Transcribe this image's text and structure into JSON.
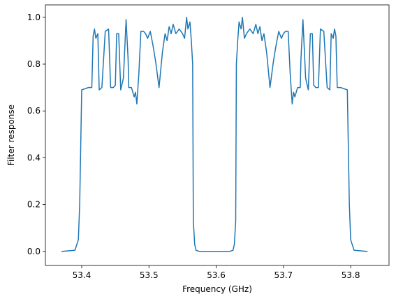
{
  "chart_data": {
    "type": "line",
    "xlabel": "Frequency (GHz)",
    "ylabel": "Filter response",
    "color": "#1f77b4",
    "x": [
      53.37,
      53.39,
      53.395,
      53.397,
      53.4,
      53.41,
      53.415,
      53.417,
      53.419,
      53.421,
      53.424,
      53.426,
      53.43,
      53.435,
      53.44,
      53.443,
      53.447,
      53.45,
      53.452,
      53.455,
      53.458,
      53.462,
      53.466,
      53.469,
      53.47,
      53.474,
      53.478,
      53.48,
      53.482,
      53.485,
      53.488,
      53.492,
      53.495,
      53.498,
      53.502,
      53.506,
      53.51,
      53.515,
      53.52,
      53.524,
      53.527,
      53.53,
      53.533,
      53.536,
      53.54,
      53.545,
      53.55,
      53.553,
      53.556,
      53.558,
      53.561,
      53.563,
      53.565,
      53.566,
      53.568,
      53.57,
      53.575,
      53.62,
      53.625,
      53.627,
      53.629,
      53.63,
      53.632,
      53.634,
      53.637,
      53.639,
      53.642,
      53.645,
      53.65,
      53.655,
      53.659,
      53.662,
      53.665,
      53.668,
      53.671,
      53.675,
      53.68,
      53.685,
      53.689,
      53.693,
      53.697,
      53.7,
      53.703,
      53.707,
      53.71,
      53.713,
      53.715,
      53.717,
      53.721,
      53.725,
      53.726,
      53.729,
      53.733,
      53.737,
      53.74,
      53.743,
      53.745,
      53.748,
      53.752,
      53.755,
      53.76,
      53.765,
      53.769,
      53.771,
      53.774,
      53.776,
      53.778,
      53.78,
      53.785,
      53.795,
      53.798,
      53.8,
      53.805,
      53.825
    ],
    "values": [
      0,
      0.005,
      0.05,
      0.2,
      0.69,
      0.7,
      0.7,
      0.92,
      0.95,
      0.91,
      0.93,
      0.69,
      0.7,
      0.94,
      0.95,
      0.7,
      0.7,
      0.71,
      0.93,
      0.93,
      0.69,
      0.74,
      0.99,
      0.82,
      0.7,
      0.7,
      0.66,
      0.68,
      0.63,
      0.76,
      0.94,
      0.94,
      0.93,
      0.91,
      0.94,
      0.88,
      0.81,
      0.7,
      0.85,
      0.93,
      0.9,
      0.96,
      0.93,
      0.97,
      0.93,
      0.95,
      0.93,
      0.91,
      1.0,
      0.95,
      0.98,
      0.9,
      0.8,
      0.13,
      0.03,
      0.005,
      0,
      0,
      0.005,
      0.03,
      0.13,
      0.8,
      0.9,
      0.98,
      0.95,
      1.0,
      0.91,
      0.93,
      0.95,
      0.93,
      0.97,
      0.93,
      0.96,
      0.9,
      0.93,
      0.85,
      0.7,
      0.81,
      0.88,
      0.94,
      0.91,
      0.93,
      0.94,
      0.94,
      0.76,
      0.63,
      0.68,
      0.66,
      0.7,
      0.7,
      0.82,
      0.99,
      0.74,
      0.69,
      0.93,
      0.93,
      0.71,
      0.7,
      0.7,
      0.95,
      0.94,
      0.7,
      0.69,
      0.93,
      0.91,
      0.95,
      0.92,
      0.7,
      0.7,
      0.69,
      0.2,
      0.05,
      0.005,
      0
    ],
    "xlim": [
      53.346,
      53.857
    ],
    "ylim": [
      -0.06,
      1.053
    ],
    "xticks": [
      53.4,
      53.5,
      53.6,
      53.7,
      53.8
    ],
    "yticks": [
      {
        "value": 0,
        "label": "0.0"
      },
      0.2,
      0.4,
      0.6,
      0.8,
      {
        "value": 1,
        "label": "1.0"
      }
    ]
  }
}
